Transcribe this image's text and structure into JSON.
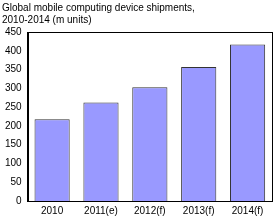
{
  "chart_data": {
    "type": "bar",
    "title": [
      "Global mobile computing device shipments,",
      "2010-2014 (m units)"
    ],
    "categories": [
      "2010",
      "2011(e)",
      "2012(f)",
      "2013(f)",
      "2014(f)"
    ],
    "values": [
      218,
      262,
      303,
      357,
      417
    ],
    "color": "#9999ff",
    "ylim": [
      0,
      450
    ],
    "yticks": [
      0,
      50,
      100,
      150,
      200,
      250,
      300,
      350,
      400,
      450
    ],
    "grid": false
  }
}
